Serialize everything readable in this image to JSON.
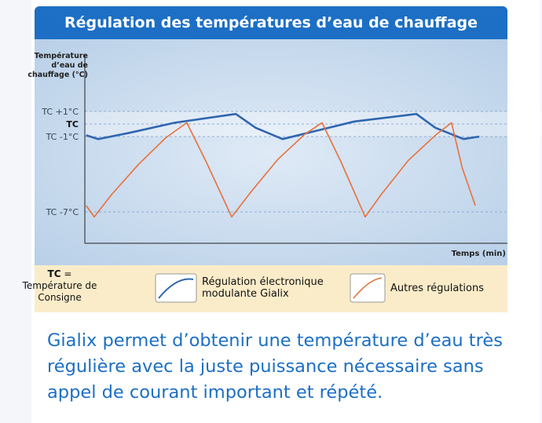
{
  "header": {
    "title": "Régulation des températures d’eau de chauffage"
  },
  "chart_data": {
    "type": "line",
    "y_label": "Température d’eau de chauffage (°C)",
    "x_label": "Temps (min)",
    "xlim": [
      0,
      100
    ],
    "ylim": [
      -9.5,
      5.5
    ],
    "yticks": [
      {
        "value": 1,
        "label": "TC +1°C"
      },
      {
        "value": 0,
        "label": "TC"
      },
      {
        "value": -1,
        "label": "TC -1°C"
      },
      {
        "value": -7,
        "label": "TC -7°C"
      }
    ],
    "grid": true,
    "series": [
      {
        "name": "Régulation électronique modulante Gialix",
        "color": "#2f66b0",
        "x": [
          0.3,
          3,
          10,
          20,
          33.6,
          38,
          44,
          52,
          60,
          73.8,
          78,
          84.3,
          87.8
        ],
        "values": [
          -0.9,
          -1.2,
          -0.7,
          0.1,
          0.8,
          -0.3,
          -1.2,
          -0.5,
          0.2,
          0.8,
          -0.3,
          -1.2,
          -1.0
        ]
      },
      {
        "name": "Autres régulations",
        "color": "#e8703a",
        "x": [
          0.3,
          2.1,
          6,
          12,
          18,
          22.7,
          27,
          32.7,
          37,
          43,
          49,
          52.8,
          57,
          62.4,
          66,
          72,
          78,
          81.6,
          84,
          86.9
        ],
        "values": [
          -6.5,
          -7.4,
          -5.6,
          -3.2,
          -1.1,
          0.1,
          -3.0,
          -7.4,
          -5.4,
          -2.8,
          -0.8,
          0.1,
          -3.0,
          -7.4,
          -5.6,
          -2.9,
          -0.9,
          0.1,
          -3.5,
          -6.5
        ]
      }
    ]
  },
  "legend_note": {
    "symbol": "TC",
    "equals": "=",
    "text": "Température de Consigne"
  },
  "footer": {
    "text": "Gialix permet d’obtenir une température d’eau très régulière avec la juste puissance nécessaire sans appel de courant important et répété."
  }
}
